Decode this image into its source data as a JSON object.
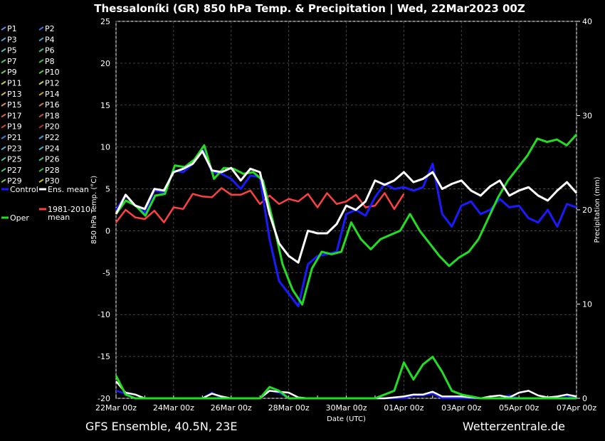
{
  "chart_data": {
    "type": "line",
    "title": "Thessaloníki  (GR)  850 hPa Temp. & Precipitation | Wed, 22Mar2023 00Z",
    "ylabel_left": "850 hPa Temp. (°C)",
    "ylabel_right": "Precipitation (mm)",
    "xlabel": "Date (UTC)",
    "ylim_left": [
      -20,
      25
    ],
    "ylim_right": [
      0,
      40
    ],
    "yticks_left": [
      25,
      20,
      15,
      10,
      5,
      0,
      -5,
      -10,
      -15,
      -20
    ],
    "yticks_right": [
      40,
      30,
      20,
      10,
      0
    ],
    "xlim_hours": [
      0,
      384
    ],
    "xticks": [
      "22Mar 00z",
      "24Mar 00z",
      "26Mar 00z",
      "28Mar 00z",
      "30Mar 00z",
      "01Apr 00z",
      "03Apr 00z",
      "05Apr 00z",
      "07Apr 00z"
    ],
    "grid": true,
    "legend_placement": "left-outside",
    "legend": [
      {
        "name": "P1",
        "color": "#5b8bd6"
      },
      {
        "name": "P2",
        "color": "#3f6fd8"
      },
      {
        "name": "P3",
        "color": "#5aa6d0"
      },
      {
        "name": "P4",
        "color": "#3fa8c8"
      },
      {
        "name": "P5",
        "color": "#4ec4c0"
      },
      {
        "name": "P6",
        "color": "#3cbf8c"
      },
      {
        "name": "P7",
        "color": "#4fcf7a"
      },
      {
        "name": "P8",
        "color": "#3dbf5a"
      },
      {
        "name": "P9",
        "color": "#6ad25a"
      },
      {
        "name": "P10",
        "color": "#5ac83c"
      },
      {
        "name": "P11",
        "color": "#b8d04a"
      },
      {
        "name": "P12",
        "color": "#c8c85a"
      },
      {
        "name": "P13",
        "color": "#d8b840"
      },
      {
        "name": "P14",
        "color": "#d0a030"
      },
      {
        "name": "P15",
        "color": "#d89060"
      },
      {
        "name": "P16",
        "color": "#c87a40"
      },
      {
        "name": "P17",
        "color": "#d86a3a"
      },
      {
        "name": "P18",
        "color": "#c8503a"
      },
      {
        "name": "P19",
        "color": "#d04a3a"
      },
      {
        "name": "P20",
        "color": "#b83030"
      },
      {
        "name": "P21",
        "color": "#4a7ad0"
      },
      {
        "name": "P22",
        "color": "#4a9ad8"
      },
      {
        "name": "P23",
        "color": "#5ab0d8"
      },
      {
        "name": "P24",
        "color": "#48b8c8"
      },
      {
        "name": "P25",
        "color": "#40c8a8"
      },
      {
        "name": "P26",
        "color": "#40c890"
      },
      {
        "name": "P27",
        "color": "#50c870"
      },
      {
        "name": "P28",
        "color": "#3ab84a"
      },
      {
        "name": "P29",
        "color": "#80d040"
      },
      {
        "name": "P30",
        "color": "#c8c020"
      },
      {
        "name": "Control",
        "color": "#1a1aff"
      },
      {
        "name": "Ens. mean",
        "color": "#ffffff"
      },
      {
        "name": "Oper",
        "color": "#22dd22"
      },
      {
        "name": "1981-2010 mean",
        "color": "#ff4040"
      }
    ],
    "series": [
      {
        "name": "Control",
        "color": "#1a1aff",
        "width": 3,
        "values": [
          2.5,
          4.2,
          3.0,
          2.2,
          4.8,
          4.6,
          7.2,
          7.0,
          8.0,
          9.8,
          7.0,
          6.8,
          6.2,
          5.0,
          6.6,
          6.4,
          -1.0,
          -6.0,
          -7.5,
          -9.0,
          -4.0,
          -3.0,
          -2.8,
          -2.5,
          2.0,
          2.5,
          1.8,
          4.0,
          5.6,
          5.0,
          5.2,
          4.8,
          5.2,
          8.0,
          2.0,
          0.5,
          3.0,
          3.5,
          2.0,
          2.5,
          3.8,
          2.8,
          3.0,
          1.5,
          1.0,
          2.5,
          0.5,
          3.2,
          2.8
        ]
      },
      {
        "name": "Ens. mean",
        "color": "#ffffff",
        "width": 3,
        "values": [
          2.0,
          4.3,
          3.0,
          2.6,
          5.0,
          4.8,
          7.0,
          7.4,
          8.0,
          9.5,
          7.2,
          7.0,
          7.5,
          6.0,
          7.4,
          7.0,
          2.0,
          -1.5,
          -3.0,
          -3.8,
          0.0,
          -0.3,
          -0.3,
          0.8,
          3.0,
          2.5,
          3.5,
          6.0,
          5.5,
          6.0,
          7.0,
          5.8,
          6.2,
          7.0,
          5.0,
          5.6,
          6.0,
          4.8,
          4.2,
          5.3,
          6.0,
          4.2,
          4.8,
          5.2,
          4.2,
          3.6,
          4.8,
          5.8,
          4.5
        ]
      },
      {
        "name": "Oper",
        "color": "#22dd22",
        "width": 3,
        "values": [
          2.0,
          3.6,
          3.0,
          1.8,
          4.2,
          4.4,
          7.8,
          7.6,
          8.5,
          10.2,
          6.2,
          7.5,
          7.4,
          6.8,
          7.0,
          6.0,
          1.2,
          -4.0,
          -7.0,
          -8.8,
          -4.5,
          -2.5,
          -2.8,
          -2.5,
          1.0,
          -1.0,
          -2.2,
          -1.0,
          -0.5,
          0.0,
          2.0,
          0.0,
          -1.5,
          -3.0,
          -4.2,
          -3.2,
          -2.5,
          -1.0,
          1.5,
          4.0,
          6.0,
          7.5,
          9.0,
          11.0,
          10.6,
          10.9,
          10.2,
          11.5
        ]
      },
      {
        "name": "1981-2010 mean",
        "color": "#ff4040",
        "width": 2.5,
        "values": [
          1.0,
          2.5,
          1.6,
          1.4,
          2.4,
          1.0,
          2.8,
          2.6,
          4.4,
          4.1,
          4.0,
          5.1,
          4.3,
          4.3,
          4.8,
          3.2,
          4.2,
          3.2,
          3.8,
          3.5,
          4.4,
          2.8,
          4.5,
          3.2,
          3.5,
          4.3,
          2.8,
          3.0,
          4.5,
          2.6,
          4.4
        ]
      }
    ],
    "precip_series": [
      {
        "name": "Control",
        "color": "#1a1aff",
        "width": 2.5,
        "values": [
          0.8,
          0.5,
          0,
          0,
          0,
          0,
          0,
          0,
          0,
          0,
          0.6,
          0,
          0,
          0,
          0,
          0,
          0.8,
          0.6,
          0,
          0,
          0,
          0,
          0,
          0,
          0,
          0,
          0,
          0,
          0,
          0,
          0,
          0.3,
          0.3,
          0.5,
          0,
          0,
          0,
          0,
          0,
          0,
          0,
          0.3,
          0,
          0,
          0,
          0,
          0.2,
          0.3,
          0
        ]
      },
      {
        "name": "Ens. mean",
        "color": "#ffffff",
        "width": 2.5,
        "values": [
          1.8,
          0.6,
          0.4,
          0,
          0,
          0,
          0,
          0,
          0,
          0,
          0.5,
          0.2,
          0,
          0,
          0,
          0,
          0.8,
          0.7,
          0.6,
          0.1,
          0,
          0,
          0,
          0,
          0,
          0,
          0,
          0,
          0,
          0.1,
          0.2,
          0.4,
          0.4,
          0.7,
          0.2,
          0.2,
          0.2,
          0.1,
          0,
          0.2,
          0.3,
          0.1,
          0.6,
          0.8,
          0.3,
          0.1,
          0.2,
          0.4,
          0.2
        ]
      },
      {
        "name": "Oper",
        "color": "#22dd22",
        "width": 3,
        "values": [
          2.4,
          0.4,
          0,
          0,
          0,
          0,
          0,
          0,
          0,
          0,
          0,
          0,
          0,
          0,
          0,
          0,
          1.2,
          0.8,
          0,
          0,
          0,
          0,
          0,
          0,
          0,
          0,
          0,
          0,
          0.4,
          0.8,
          3.8,
          2.0,
          3.6,
          4.4,
          2.8,
          0.8,
          0.4,
          0.2,
          0,
          0,
          0,
          0,
          0,
          0,
          0,
          0,
          0,
          0,
          0
        ]
      }
    ]
  },
  "footer": {
    "left": "GFS Ensemble, 40.5N, 23E",
    "right": "Wetterzentrale.de"
  }
}
